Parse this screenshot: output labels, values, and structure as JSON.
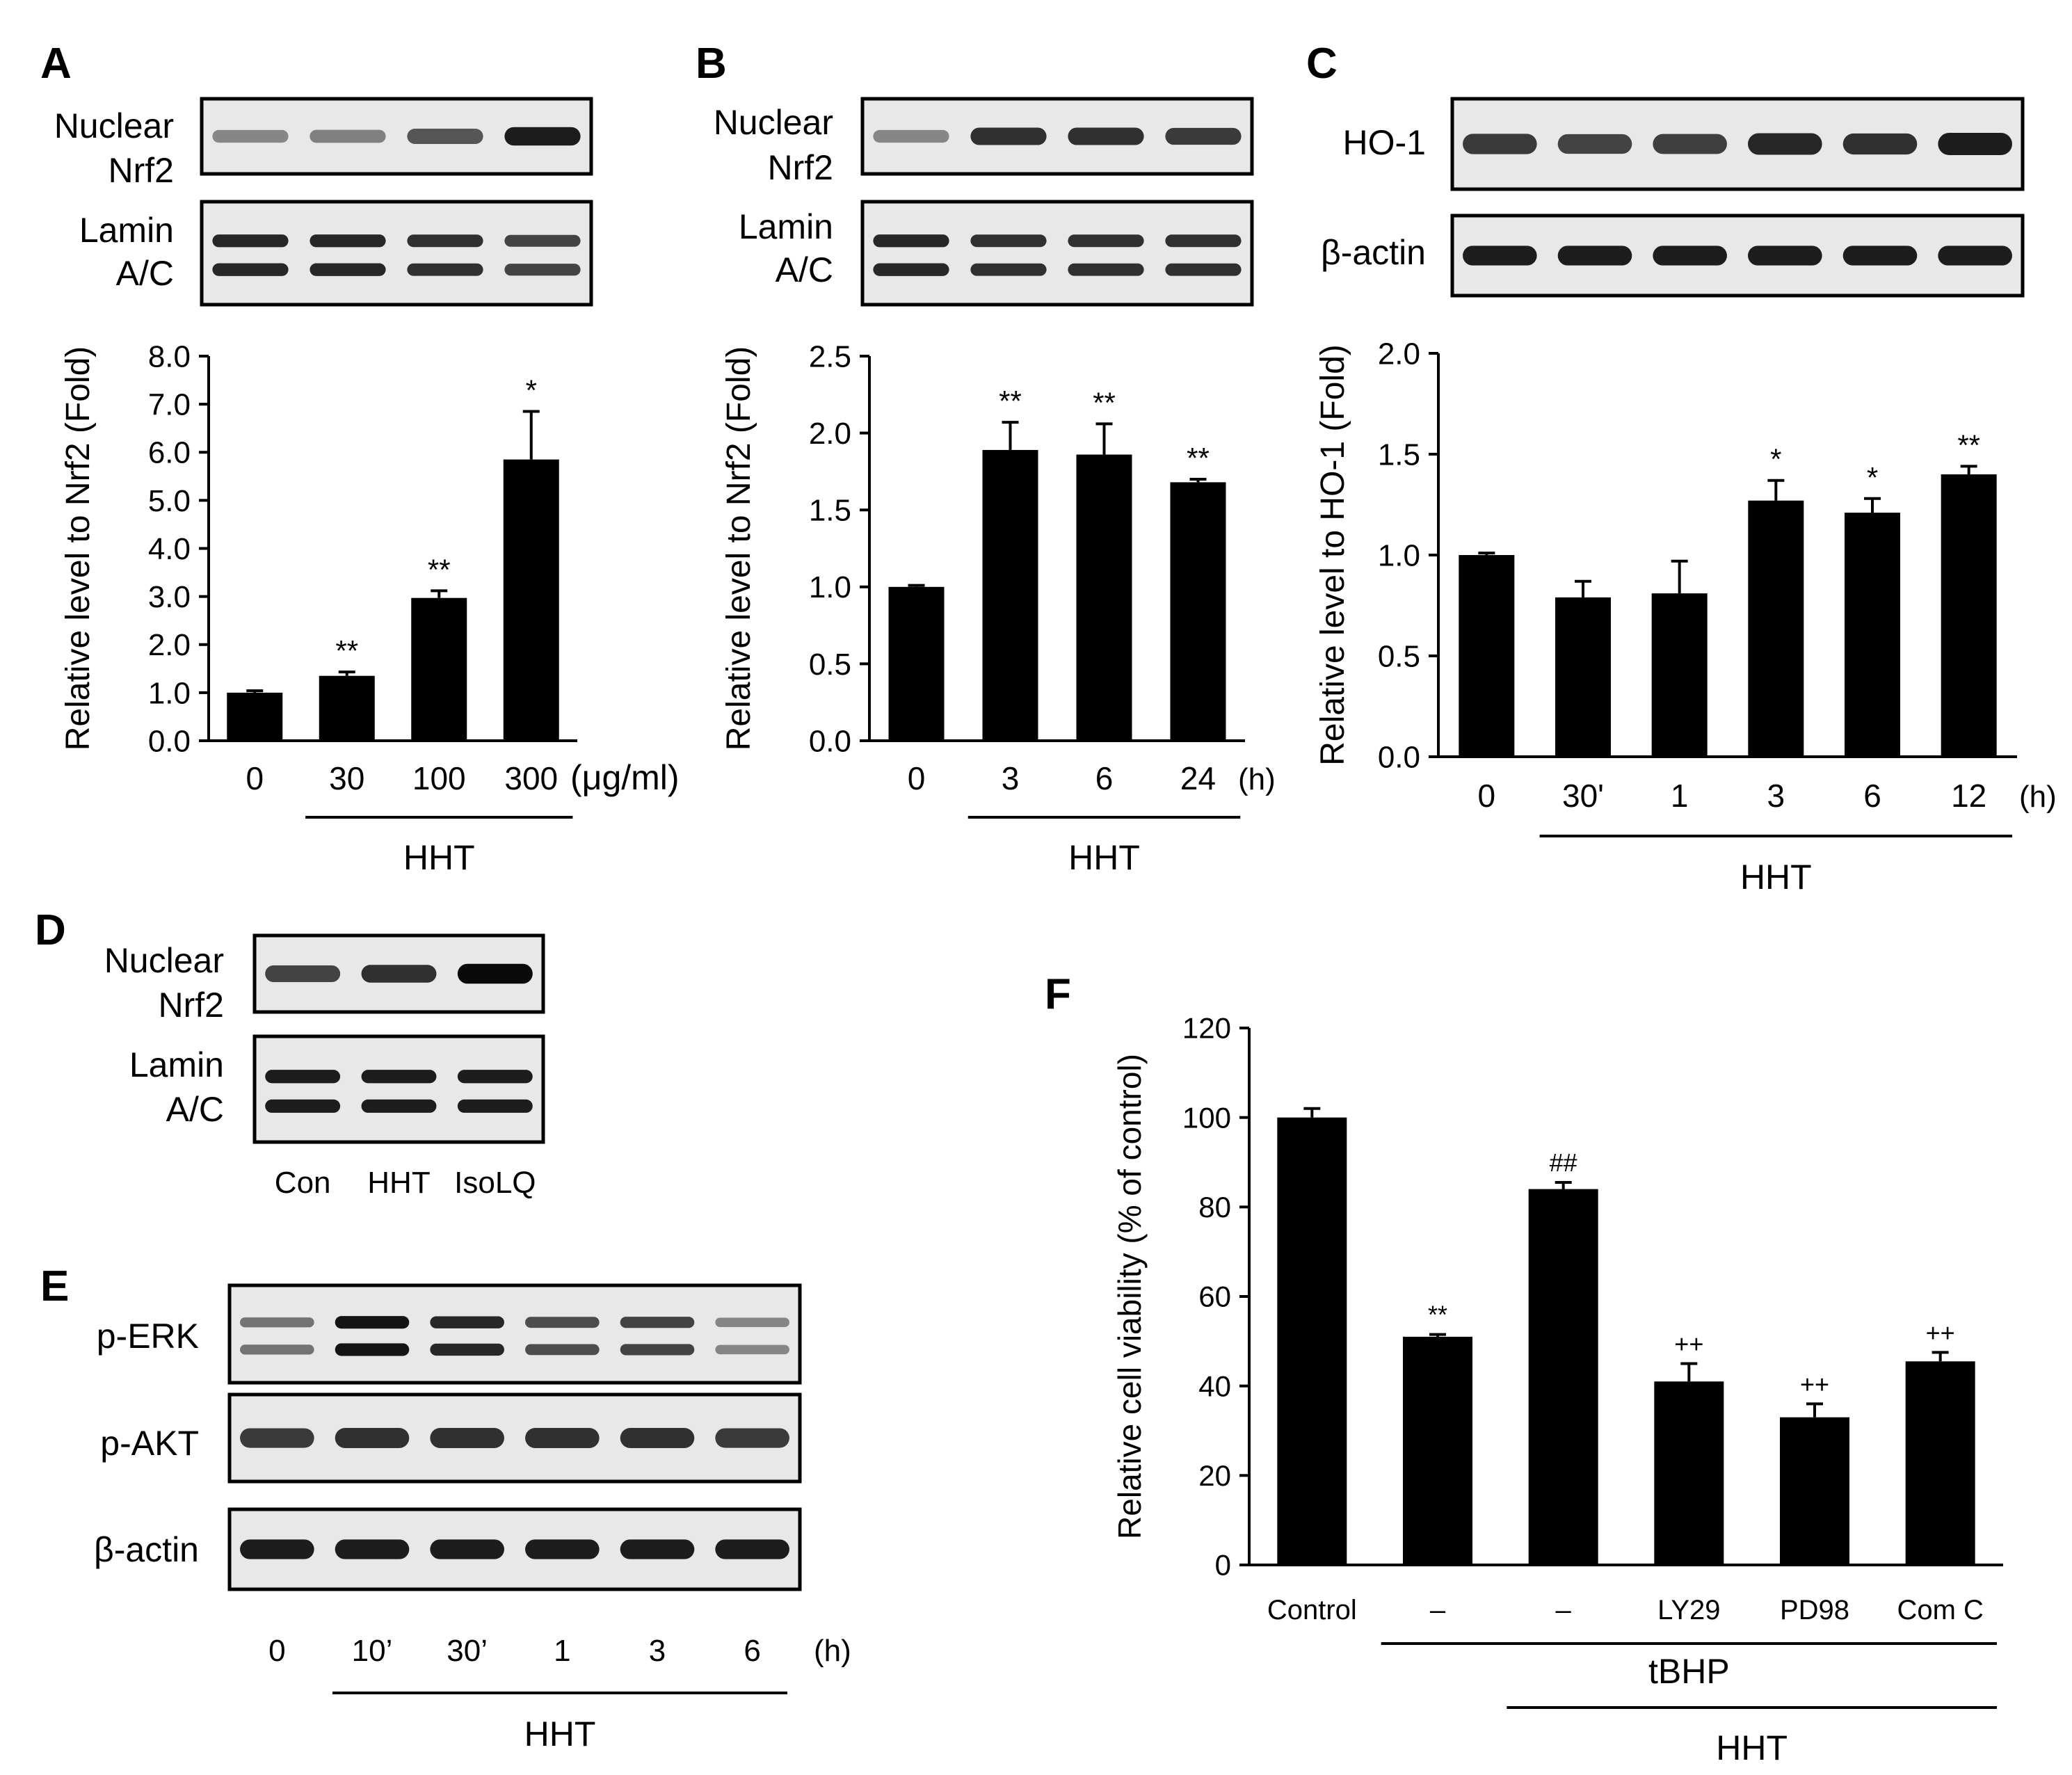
{
  "panels": {
    "A": {
      "label": "A",
      "blot_labels": [
        "Nuclear",
        "Nrf2",
        "Lamin",
        "A/C"
      ]
    },
    "B": {
      "label": "B",
      "blot_labels": [
        "Nuclear",
        "Nrf2",
        "Lamin",
        "A/C"
      ]
    },
    "C": {
      "label": "C",
      "blot_labels": [
        "HO-1",
        "β-actin"
      ]
    },
    "D": {
      "label": "D",
      "blot_labels": [
        "Nuclear",
        "Nrf2",
        "Lamin",
        "A/C"
      ],
      "lane_labels": [
        "Con",
        "HHT",
        "IsoLQ"
      ]
    },
    "E": {
      "label": "E",
      "blot_labels": [
        "p-ERK",
        "p-AKT",
        "β-actin"
      ],
      "lane_labels": [
        "0",
        "10’",
        "30’",
        "1",
        "3",
        "6"
      ],
      "unit": "(h)",
      "group_label": "HHT"
    },
    "F": {
      "label": "F"
    }
  },
  "chart_data": [
    {
      "id": "A",
      "type": "bar",
      "categories": [
        "0",
        "30",
        "100",
        "300"
      ],
      "values": [
        1.0,
        1.35,
        2.97,
        5.85
      ],
      "errors": [
        0.04,
        0.08,
        0.15,
        1.0
      ],
      "significance": [
        "",
        "**",
        "**",
        "*"
      ],
      "yticks": [
        "0.0",
        "1.0",
        "2.0",
        "3.0",
        "4.0",
        "5.0",
        "6.0",
        "7.0",
        "8.0"
      ],
      "ylim": [
        0,
        8
      ],
      "ylabel": "Relative level to Nrf2 (Fold)",
      "unit": "(μg/ml)",
      "group_label": "HHT",
      "group_from": 1
    },
    {
      "id": "B",
      "type": "bar",
      "categories": [
        "0",
        "3",
        "6",
        "24"
      ],
      "values": [
        1.0,
        1.89,
        1.86,
        1.68
      ],
      "errors": [
        0.01,
        0.18,
        0.2,
        0.02
      ],
      "significance": [
        "",
        "**",
        "**",
        "**"
      ],
      "yticks": [
        "0.0",
        "0.5",
        "1.0",
        "1.5",
        "2.0",
        "2.5"
      ],
      "ylim": [
        0,
        2.5
      ],
      "ylabel": "Relative level to Nrf2 (Fold)",
      "unit": "(h)",
      "group_label": "HHT",
      "group_from": 1
    },
    {
      "id": "C",
      "type": "bar",
      "categories": [
        "0",
        "30'",
        "1",
        "3",
        "6",
        "12"
      ],
      "values": [
        1.0,
        0.79,
        0.81,
        1.27,
        1.21,
        1.4
      ],
      "errors": [
        0.01,
        0.08,
        0.16,
        0.1,
        0.07,
        0.04
      ],
      "significance": [
        "",
        "",
        "",
        "*",
        "*",
        "**"
      ],
      "yticks": [
        "0.0",
        "0.5",
        "1.0",
        "1.5",
        "2.0"
      ],
      "ylim": [
        0,
        2
      ],
      "ylabel": "Relative level to HO-1 (Fold)",
      "unit": "(h)",
      "group_label": "HHT",
      "group_from": 1
    },
    {
      "id": "F",
      "type": "bar",
      "categories": [
        "Control",
        "–",
        "–",
        "LY29",
        "PD98",
        "Com C"
      ],
      "values": [
        100,
        51,
        84,
        41,
        33,
        45.5
      ],
      "errors": [
        2,
        0.5,
        1.5,
        4,
        3,
        2
      ],
      "significance": [
        "",
        "**",
        "##",
        "++",
        "++",
        "++"
      ],
      "yticks": [
        "0",
        "20",
        "40",
        "60",
        "80",
        "100",
        "120"
      ],
      "ylim": [
        0,
        120
      ],
      "ylabel": "Relative cell viability (% of control)",
      "group_labels": [
        "tBHP",
        "HHT"
      ]
    }
  ],
  "blots": {
    "A_nrf2": [
      0.35,
      0.38,
      0.6,
      0.9
    ],
    "A_lamin": [
      0.85,
      0.85,
      0.8,
      0.7
    ],
    "B_nrf2": [
      0.35,
      0.8,
      0.8,
      0.75
    ],
    "B_lamin": [
      0.85,
      0.8,
      0.8,
      0.8
    ],
    "C_ho1": [
      0.75,
      0.7,
      0.72,
      0.85,
      0.8,
      0.9
    ],
    "C_actin": [
      0.9,
      0.9,
      0.9,
      0.9,
      0.9,
      0.9
    ],
    "D_nrf2": [
      0.7,
      0.8,
      1.0
    ],
    "D_lamin": [
      0.9,
      0.9,
      0.9
    ],
    "E_perk": [
      0.45,
      0.95,
      0.85,
      0.65,
      0.7,
      0.35
    ],
    "E_pakt": [
      0.75,
      0.8,
      0.8,
      0.8,
      0.8,
      0.75
    ],
    "E_actin": [
      0.9,
      0.9,
      0.9,
      0.9,
      0.9,
      0.9
    ]
  }
}
